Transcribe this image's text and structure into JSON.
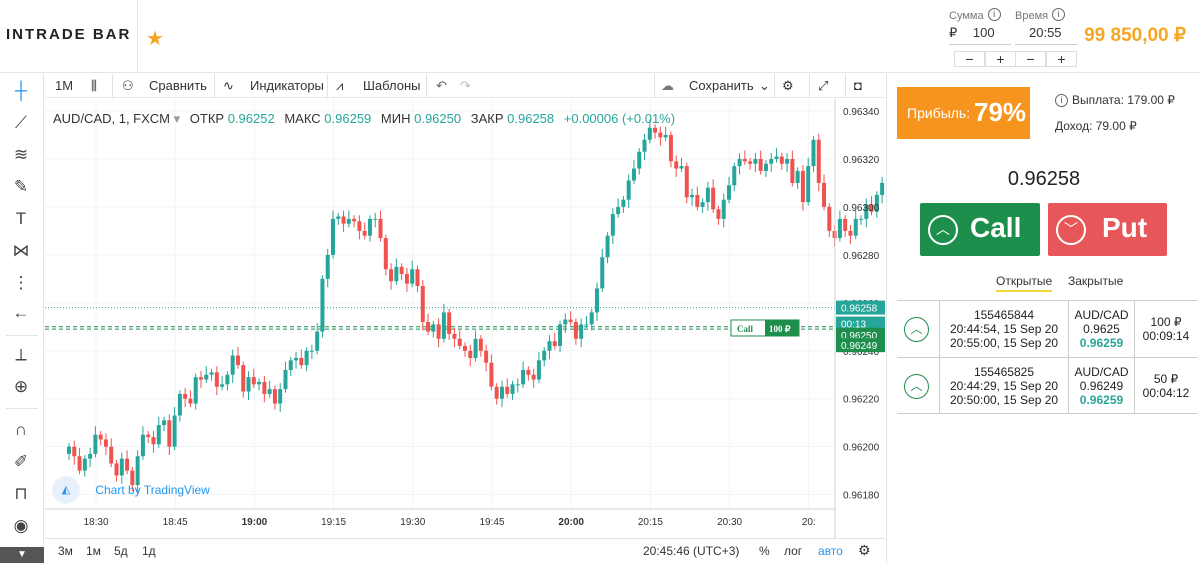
{
  "header": {
    "logo": "INTRADE BAR",
    "amount_label": "Сумма",
    "amount_currency": "₽",
    "amount_value": "100",
    "time_label": "Время",
    "time_value": "20:55",
    "balance": "99 850,00 ₽"
  },
  "toolbar": {
    "interval": "1M",
    "compare": "Сравнить",
    "indicators": "Индикаторы",
    "templates": "Шаблоны",
    "save": "Сохранить"
  },
  "legend": {
    "symbol": "AUD/CAD, 1, FXCM",
    "open_label": "ОТКР",
    "open": "0.96252",
    "high_label": "МАКС",
    "high": "0.96259",
    "low_label": "МИН",
    "low": "0.96250",
    "close_label": "ЗАКР",
    "close": "0.96258",
    "change": "+0.00006 (+0.01%)"
  },
  "chart_data": {
    "type": "candlestick",
    "x_ticks": [
      "18:30",
      "18:45",
      "19:00",
      "19:15",
      "19:30",
      "19:45",
      "20:00",
      "20:15",
      "20:30",
      "20:"
    ],
    "y_ticks": [
      "0.96340",
      "0.96320",
      "0.96300",
      "0.96280",
      "0.96260",
      "0.96240",
      "0.96220",
      "0.96200",
      "0.96180"
    ],
    "ylim": [
      0.96174,
      0.96345
    ],
    "price_labels": [
      {
        "value": "0.96258",
        "color": "#26a69a"
      },
      {
        "value": "00:13",
        "color": "#26a69a"
      },
      {
        "value": "0.96250",
        "color": "#1e8e4c"
      },
      {
        "value": "0.96249",
        "color": "#1e8e4c"
      }
    ],
    "position_marker": {
      "label": "Call",
      "amount": "100 ₽"
    },
    "close_prices": [
      0.962,
      0.96196,
      0.9619,
      0.96195,
      0.96197,
      0.96205,
      0.96203,
      0.962,
      0.96193,
      0.96188,
      0.96195,
      0.9619,
      0.96184,
      0.96196,
      0.96205,
      0.96204,
      0.96201,
      0.96209,
      0.96211,
      0.962,
      0.96213,
      0.96222,
      0.9622,
      0.96218,
      0.96229,
      0.96228,
      0.9623,
      0.96231,
      0.96225,
      0.96226,
      0.9623,
      0.96238,
      0.96234,
      0.96223,
      0.96229,
      0.96226,
      0.96227,
      0.96222,
      0.96224,
      0.96218,
      0.96224,
      0.96232,
      0.96236,
      0.96237,
      0.96234,
      0.9624,
      0.9624,
      0.96248,
      0.9627,
      0.9628,
      0.96295,
      0.96296,
      0.96293,
      0.96295,
      0.96294,
      0.9629,
      0.96288,
      0.96295,
      0.96295,
      0.96287,
      0.96274,
      0.96269,
      0.96275,
      0.96272,
      0.96268,
      0.96274,
      0.96267,
      0.96252,
      0.96248,
      0.96251,
      0.96245,
      0.96256,
      0.96247,
      0.96245,
      0.96242,
      0.9624,
      0.96237,
      0.96245,
      0.9624,
      0.96235,
      0.96225,
      0.9622,
      0.96225,
      0.96222,
      0.96226,
      0.96226,
      0.96232,
      0.9623,
      0.96228,
      0.96236,
      0.9624,
      0.96244,
      0.96242,
      0.96251,
      0.96253,
      0.96252,
      0.96245,
      0.96251,
      0.96251,
      0.96256,
      0.96266,
      0.96279,
      0.96288,
      0.96297,
      0.963,
      0.96303,
      0.96311,
      0.96316,
      0.96323,
      0.96328,
      0.96333,
      0.96331,
      0.96329,
      0.9633,
      0.96319,
      0.96316,
      0.96317,
      0.96304,
      0.96305,
      0.963,
      0.96302,
      0.96308,
      0.96299,
      0.96295,
      0.96303,
      0.96309,
      0.96317,
      0.9632,
      0.96319,
      0.96318,
      0.9632,
      0.96315,
      0.96318,
      0.9632,
      0.96321,
      0.96318,
      0.9632,
      0.9631,
      0.96315,
      0.96302,
      0.96317,
      0.96328,
      0.9631,
      0.963,
      0.9629,
      0.96287,
      0.96295,
      0.9629,
      0.96288,
      0.96295,
      0.96295,
      0.96301,
      0.96298,
      0.96305,
      0.9631,
      0.96315,
      0.96305,
      0.96298,
      0.96294,
      0.96283,
      0.96277,
      0.96278,
      0.96271,
      0.96265,
      0.96263,
      0.9626,
      0.96264,
      0.96265,
      0.96267,
      0.96265,
      0.96269,
      0.96265,
      0.96264,
      0.96262,
      0.9626,
      0.96256,
      0.9625,
      0.96252,
      0.96254,
      0.96258
    ]
  },
  "bottombar": {
    "range_3m": "3м",
    "range_1m": "1м",
    "range_5d": "5д",
    "range_1d": "1д",
    "clock": "20:45:46 (UTC+3)",
    "percent": "%",
    "log": "лог",
    "auto": "авто"
  },
  "branding": "Chart by TradingView",
  "panel": {
    "profit_label": "Прибыль:",
    "profit_pct": "79%",
    "payout": "Выплата: 179.00 ₽",
    "income": "Доход: 79.00 ₽",
    "current_price": "0.96258",
    "call_label": "Call",
    "put_label": "Put",
    "tab_open": "Открытые",
    "tab_closed": "Закрытые",
    "trades": [
      {
        "id": "155465844",
        "opened": "20:44:54, 15 Sep 20",
        "closes": "20:55:00, 15 Sep 20",
        "pair": "AUD/CAD",
        "open_price": "0.9625",
        "current": "0.96259",
        "amount": "100 ₽",
        "remaining": "00:09:14"
      },
      {
        "id": "155465825",
        "opened": "20:44:29, 15 Sep 20",
        "closes": "20:50:00, 15 Sep 20",
        "pair": "AUD/CAD",
        "open_price": "0.96249",
        "current": "0.96259",
        "amount": "50 ₽",
        "remaining": "00:04:12"
      }
    ]
  },
  "colors": {
    "up": "#26a69a",
    "down": "#ef5350",
    "accent": "#f5a623",
    "call": "#1e8e4c",
    "put": "#e75759"
  }
}
